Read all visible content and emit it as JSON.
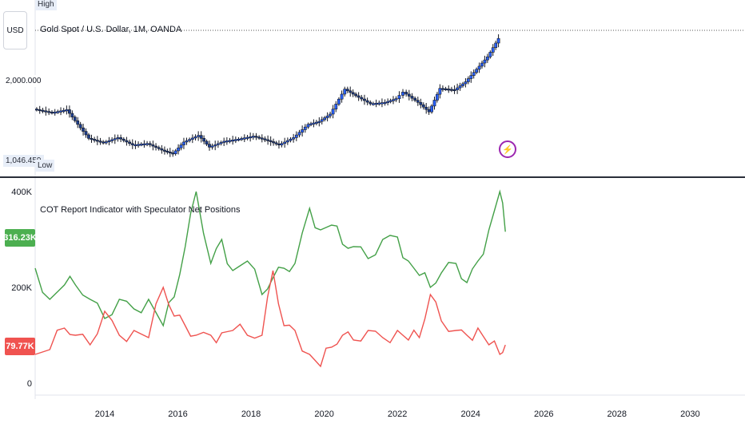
{
  "colors": {
    "background": "#ffffff",
    "candle_up": "#2962ff",
    "candle_body": "#1e3f8f",
    "candle_wick": "#131722",
    "long_line": "#43a047",
    "short_line": "#ef5350",
    "divider": "#2a2e39",
    "axis_text": "#131722",
    "badge_green": "#4caf50",
    "badge_red": "#f05350"
  },
  "price_pane": {
    "currency_button": "USD",
    "high_label": "High",
    "low_label": "Low",
    "title": "Gold Spot / U.S. Dollar, 1M, OANDA",
    "price_tick": "2,000.000",
    "low_value": "1,046.459",
    "icon": "lightning-icon"
  },
  "indicator_pane": {
    "title": "COT Report Indicator with Speculator Net Positions",
    "long_badge": "316.23K",
    "short_badge": "79.77K",
    "y_ticks": [
      "400K",
      "200K",
      "0"
    ]
  },
  "x_axis": {
    "labels": [
      "2014",
      "2016",
      "2018",
      "2020",
      "2022",
      "2024",
      "2026",
      "2028",
      "2030"
    ]
  },
  "chart_data": [
    {
      "type": "candlestick",
      "title": "Gold Spot / U.S. Dollar, 1M, OANDA",
      "x_range": [
        2012.1,
        2031.5
      ],
      "price_range": [
        1000,
        2800
      ],
      "labeled_prices": {
        "price_tick": 2000,
        "low": 1046.459
      },
      "x": [
        2012.1,
        2012.6,
        2013.0,
        2013.3,
        2013.6,
        2014.0,
        2014.4,
        2014.8,
        2015.2,
        2015.6,
        2015.9,
        2016.2,
        2016.6,
        2016.9,
        2017.3,
        2017.7,
        2018.1,
        2018.5,
        2018.8,
        2019.2,
        2019.6,
        2019.9,
        2020.2,
        2020.6,
        2020.9,
        2021.3,
        2021.7,
        2022.0,
        2022.2,
        2022.6,
        2022.9,
        2023.2,
        2023.6,
        2023.9,
        2024.2,
        2024.5,
        2024.8
      ],
      "close": [
        1690,
        1640,
        1680,
        1480,
        1290,
        1230,
        1300,
        1200,
        1220,
        1130,
        1080,
        1240,
        1330,
        1170,
        1250,
        1280,
        1320,
        1260,
        1200,
        1300,
        1480,
        1520,
        1620,
        1960,
        1870,
        1760,
        1780,
        1830,
        1920,
        1780,
        1650,
        1970,
        1950,
        2060,
        2230,
        2400,
        2650
      ]
    },
    {
      "type": "line",
      "title": "COT Report Indicator with Speculator Net Positions",
      "y_range": [
        0,
        400000
      ],
      "last_values": {
        "long": 316230,
        "short": 79770
      },
      "x": [
        2012.1,
        2012.5,
        2012.9,
        2013.2,
        2013.6,
        2014.0,
        2014.4,
        2014.8,
        2015.2,
        2015.6,
        2015.9,
        2016.2,
        2016.5,
        2016.9,
        2017.2,
        2017.5,
        2017.9,
        2018.3,
        2018.6,
        2018.9,
        2019.2,
        2019.6,
        2019.9,
        2020.2,
        2020.5,
        2020.8,
        2021.2,
        2021.6,
        2022.0,
        2022.3,
        2022.6,
        2022.9,
        2023.2,
        2023.6,
        2023.9,
        2024.2,
        2024.5,
        2024.8,
        2024.95
      ],
      "series": [
        {
          "values": [
            240000,
            175000,
            205000,
            205000,
            175000,
            135000,
            175000,
            155000,
            175000,
            120000,
            180000,
            285000,
            400000,
            250000,
            300000,
            235000,
            255000,
            185000,
            220000,
            240000,
            250000,
            365000,
            320000,
            330000,
            290000,
            285000,
            260000,
            300000,
            305000,
            255000,
            225000,
            200000,
            230000,
            250000,
            210000,
            255000,
            320000,
            400000,
            316230
          ]
        },
        {
          "values": [
            60000,
            70000,
            115000,
            100000,
            80000,
            150000,
            100000,
            110000,
            95000,
            200000,
            140000,
            120000,
            100000,
            100000,
            105000,
            110000,
            100000,
            100000,
            235000,
            120000,
            110000,
            60000,
            35000,
            75000,
            100000,
            90000,
            110000,
            95000,
            110000,
            90000,
            95000,
            185000,
            130000,
            110000,
            100000,
            115000,
            80000,
            60000,
            79770
          ]
        }
      ]
    }
  ]
}
